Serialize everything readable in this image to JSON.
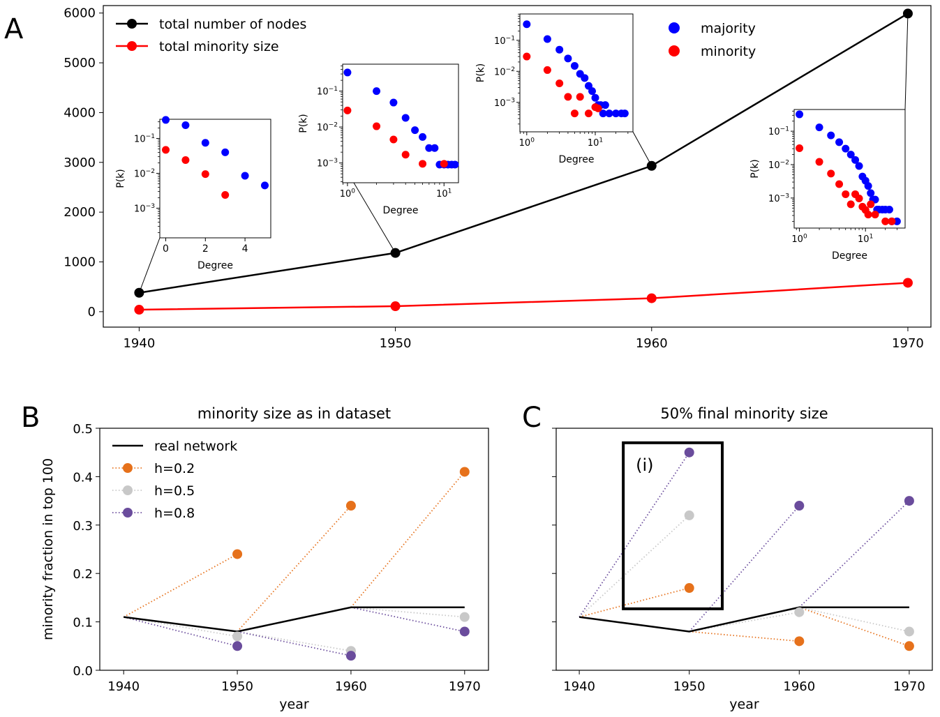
{
  "panel_labels": {
    "a": "A",
    "b": "B",
    "c": "C",
    "roman": "(i)"
  },
  "colors": {
    "total": "#000000",
    "minority_size": "#ff0000",
    "majority_dot": "#0000ff",
    "minority_dot": "#ff0000",
    "h02": "#e6711b",
    "h05": "#c8c8c8",
    "h08": "#6a4c9c",
    "real": "#000000"
  },
  "chart_data": [
    {
      "id": "A",
      "type": "line",
      "x": [
        1940,
        1950,
        1960,
        1970
      ],
      "xlim": [
        1938.6,
        1970.9
      ],
      "ylim": [
        -310,
        6150
      ],
      "xticks": [
        1940,
        1950,
        1960,
        1970
      ],
      "yticks": [
        0,
        1000,
        2000,
        3000,
        4000,
        5000,
        6000
      ],
      "legend": "top-left",
      "series": [
        {
          "name": "total number of nodes",
          "values": [
            380,
            1180,
            2930,
            5990
          ],
          "color": "#000000"
        },
        {
          "name": "total minority size",
          "values": [
            40,
            110,
            270,
            580
          ],
          "color": "#ff0000"
        }
      ],
      "inset_legend": [
        "majority",
        "minority"
      ],
      "insets": [
        {
          "year": 1940,
          "type": "scatter",
          "xscale": "linear",
          "yscale": "log",
          "xlabel": "Degree",
          "ylabel": "P(k)",
          "xlim": [
            -0.3,
            5.3
          ],
          "ylim_log": [
            -3.85,
            -0.45
          ],
          "xticks": [
            {
              "v": 0,
              "label": "0"
            },
            {
              "v": 2,
              "label": "2"
            },
            {
              "v": 4,
              "label": "4"
            }
          ],
          "yticks": [
            {
              "e": -1,
              "label": "10^-1"
            },
            {
              "e": -2,
              "label": "10^-2"
            },
            {
              "e": -3,
              "label": "10^-3"
            }
          ],
          "majority": [
            [
              0,
              0.34
            ],
            [
              1,
              0.24
            ],
            [
              2,
              0.075
            ],
            [
              3,
              0.04
            ],
            [
              4,
              0.0085
            ],
            [
              5,
              0.0045
            ]
          ],
          "minority": [
            [
              0,
              0.047
            ],
            [
              1,
              0.024
            ],
            [
              2,
              0.0095
            ],
            [
              3,
              0.0024
            ]
          ]
        },
        {
          "year": 1950,
          "type": "scatter",
          "xscale": "log",
          "yscale": "log",
          "xlabel": "Degree",
          "ylabel": "P(k)",
          "xlim_log": [
            -0.05,
            1.15
          ],
          "ylim_log": [
            -3.55,
            -0.25
          ],
          "xticks": [
            {
              "e": 0,
              "label": "10^0"
            },
            {
              "e": 1,
              "label": "10^1"
            }
          ],
          "yticks": [
            {
              "e": -1,
              "label": "10^-1"
            },
            {
              "e": -2,
              "label": "10^-2"
            },
            {
              "e": -3,
              "label": "10^-3"
            }
          ],
          "majority": [
            [
              1,
              0.33
            ],
            [
              2,
              0.1
            ],
            [
              3,
              0.048
            ],
            [
              4,
              0.018
            ],
            [
              5,
              0.0082
            ],
            [
              6,
              0.0053
            ],
            [
              7,
              0.0026
            ],
            [
              8,
              0.0026
            ],
            [
              9,
              0.0009
            ],
            [
              10,
              0.0009
            ],
            [
              11,
              0.0009
            ],
            [
              12,
              0.0009
            ],
            [
              13,
              0.0009
            ]
          ],
          "minority": [
            [
              1,
              0.029
            ],
            [
              2,
              0.0105
            ],
            [
              3,
              0.0045
            ],
            [
              4,
              0.0017
            ],
            [
              6,
              0.00095
            ],
            [
              10,
              0.00095
            ]
          ]
        },
        {
          "year": 1960,
          "type": "scatter",
          "xscale": "log",
          "yscale": "log",
          "xlabel": "Degree",
          "ylabel": "P(k)",
          "xlim_log": [
            -0.1,
            1.55
          ],
          "ylim_log": [
            -3.95,
            -0.15
          ],
          "xticks": [
            {
              "e": 0,
              "label": "10^0"
            },
            {
              "e": 1,
              "label": "10^1"
            }
          ],
          "yticks": [
            {
              "e": -1,
              "label": "10^-1"
            },
            {
              "e": -2,
              "label": "10^-2"
            },
            {
              "e": -3,
              "label": "10^-3"
            }
          ],
          "majority": [
            [
              1,
              0.33
            ],
            [
              2,
              0.11
            ],
            [
              3,
              0.05
            ],
            [
              4,
              0.026
            ],
            [
              5,
              0.015
            ],
            [
              6,
              0.0083
            ],
            [
              7,
              0.0061
            ],
            [
              8,
              0.0034
            ],
            [
              9,
              0.0023
            ],
            [
              10,
              0.0014
            ],
            [
              11,
              0.00082
            ],
            [
              12,
              0.00082
            ],
            [
              13,
              0.00044
            ],
            [
              14,
              0.00082
            ],
            [
              16,
              0.00044
            ],
            [
              20,
              0.00044
            ],
            [
              24,
              0.00044
            ],
            [
              27,
              0.00044
            ]
          ],
          "minority": [
            [
              1,
              0.03
            ],
            [
              2,
              0.011
            ],
            [
              3,
              0.0041
            ],
            [
              4,
              0.0015
            ],
            [
              5,
              0.00044
            ],
            [
              6,
              0.0015
            ],
            [
              8,
              0.00044
            ],
            [
              10,
              0.0007
            ],
            [
              11,
              0.00064
            ]
          ]
        },
        {
          "year": 1970,
          "type": "scatter",
          "xscale": "log",
          "yscale": "log",
          "xlabel": "Degree",
          "ylabel": "P(k)",
          "xlim_log": [
            -0.08,
            1.6
          ],
          "ylim_log": [
            -3.9,
            -0.35
          ],
          "xticks": [
            {
              "e": 0,
              "label": "10^0"
            },
            {
              "e": 1,
              "label": "10^1"
            }
          ],
          "yticks": [
            {
              "e": -1,
              "label": "10^-1"
            },
            {
              "e": -2,
              "label": "10^-2"
            },
            {
              "e": -3,
              "label": "10^-3"
            }
          ],
          "majority": [
            [
              1,
              0.32
            ],
            [
              2,
              0.13
            ],
            [
              3,
              0.075
            ],
            [
              4,
              0.047
            ],
            [
              5,
              0.03
            ],
            [
              6,
              0.02
            ],
            [
              7,
              0.0138
            ],
            [
              8,
              0.0091
            ],
            [
              9,
              0.0044
            ],
            [
              10,
              0.0033
            ],
            [
              11,
              0.0023
            ],
            [
              12,
              0.0014
            ],
            [
              13,
              0.0009
            ],
            [
              14,
              0.0009
            ],
            [
              15,
              0.00045
            ],
            [
              16,
              0.00045
            ],
            [
              18,
              0.00045
            ],
            [
              20,
              0.00045
            ],
            [
              23,
              0.00045
            ],
            [
              25,
              0.0002
            ],
            [
              30,
              0.0002
            ]
          ],
          "minority": [
            [
              1,
              0.031
            ],
            [
              2,
              0.0121
            ],
            [
              3,
              0.0054
            ],
            [
              4,
              0.0026
            ],
            [
              5,
              0.0013
            ],
            [
              6,
              0.00065
            ],
            [
              7,
              0.0013
            ],
            [
              8,
              0.00097
            ],
            [
              9,
              0.00055
            ],
            [
              10,
              0.00044
            ],
            [
              11,
              0.00032
            ],
            [
              12,
              0.00065
            ],
            [
              14,
              0.00032
            ],
            [
              20,
              0.0002
            ],
            [
              25,
              0.0002
            ]
          ]
        }
      ]
    },
    {
      "id": "B",
      "type": "line",
      "title": "minority size as in dataset",
      "xlabel": "year",
      "ylabel": "minority fraction in top 100",
      "xlim": [
        1937.9,
        1972.1
      ],
      "ylim": [
        0,
        0.5
      ],
      "xticks": [
        1940,
        1950,
        1960,
        1970
      ],
      "yticks": [
        0.0,
        0.1,
        0.2,
        0.3,
        0.4,
        0.5
      ],
      "ytick_labels": [
        "0.0",
        "0.1",
        "0.2",
        "0.3",
        "0.4",
        "0.5"
      ],
      "legend": "top-left",
      "legend_entries": [
        "real network",
        "h=0.2",
        "h=0.5",
        "h=0.8"
      ],
      "real_network": {
        "x": [
          1940,
          1950,
          1960,
          1970
        ],
        "values": [
          0.11,
          0.08,
          0.13,
          0.13
        ]
      },
      "series": [
        {
          "name": "h=0.2",
          "values": [
            0.24,
            0.34,
            0.41
          ]
        },
        {
          "name": "h=0.5",
          "values": [
            0.07,
            0.04,
            0.11
          ]
        },
        {
          "name": "h=0.8",
          "values": [
            0.05,
            0.03,
            0.08
          ]
        }
      ],
      "points_x": [
        1950,
        1960,
        1970
      ]
    },
    {
      "id": "C",
      "type": "line",
      "title": "50% final minority size",
      "xlabel": "year",
      "xlim": [
        1937.9,
        1972.1
      ],
      "ylim": [
        0,
        0.5
      ],
      "xticks": [
        1940,
        1950,
        1960,
        1970
      ],
      "yticks": [
        0.0,
        0.1,
        0.2,
        0.3,
        0.4,
        0.5
      ],
      "real_network": {
        "x": [
          1940,
          1950,
          1960,
          1970
        ],
        "values": [
          0.11,
          0.08,
          0.13,
          0.13
        ]
      },
      "series": [
        {
          "name": "h=0.2",
          "values": [
            0.17,
            0.06,
            0.05
          ]
        },
        {
          "name": "h=0.5",
          "values": [
            0.32,
            0.12,
            0.08
          ]
        },
        {
          "name": "h=0.8",
          "values": [
            0.45,
            0.34,
            0.35
          ]
        }
      ],
      "points_x": [
        1950,
        1960,
        1970
      ],
      "highlight_box": {
        "label": "(i)",
        "x0": 1944,
        "x1": 1953,
        "y0": 0.127,
        "y1": 0.47
      }
    }
  ]
}
